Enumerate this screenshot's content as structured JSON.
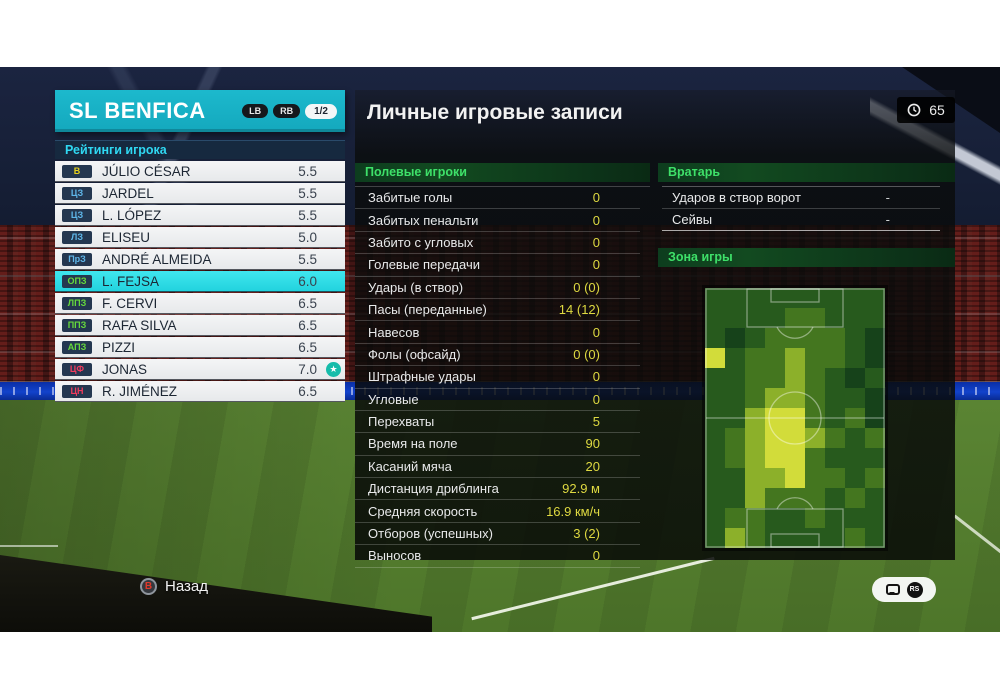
{
  "team_panel": {
    "team_name": "SL BENFICA",
    "lb_label": "LB",
    "rb_label": "RB",
    "page_indicator": "1/2",
    "section_title": "Рейтинги игрока",
    "position_colors": {
      "gk": "#e8d21c",
      "df": "#5fb7ea",
      "mf": "#66d93c",
      "fw": "#f03c5e"
    },
    "players": [
      {
        "pos": "В",
        "type": "gk",
        "name": "JÚLIO CÉSAR",
        "rating": "5.5",
        "selected": false,
        "star": false
      },
      {
        "pos": "ЦЗ",
        "type": "df",
        "name": "JARDEL",
        "rating": "5.5",
        "selected": false,
        "star": false
      },
      {
        "pos": "ЦЗ",
        "type": "df",
        "name": "L. LÓPEZ",
        "rating": "5.5",
        "selected": false,
        "star": false
      },
      {
        "pos": "ЛЗ",
        "type": "df",
        "name": "ELISEU",
        "rating": "5.0",
        "selected": false,
        "star": false
      },
      {
        "pos": "ПрЗ",
        "type": "df",
        "name": "ANDRÉ ALMEIDA",
        "rating": "5.5",
        "selected": false,
        "star": false
      },
      {
        "pos": "ОПЗ",
        "type": "mf",
        "name": "L. FEJSA",
        "rating": "6.0",
        "selected": true,
        "star": false
      },
      {
        "pos": "ЛПЗ",
        "type": "mf",
        "name": "F. CERVI",
        "rating": "6.5",
        "selected": false,
        "star": false
      },
      {
        "pos": "ППЗ",
        "type": "mf",
        "name": "RAFA SILVA",
        "rating": "6.5",
        "selected": false,
        "star": false
      },
      {
        "pos": "АПЗ",
        "type": "mf",
        "name": "PIZZI",
        "rating": "6.5",
        "selected": false,
        "star": false
      },
      {
        "pos": "ЦФ",
        "type": "fw",
        "name": "JONAS",
        "rating": "7.0",
        "selected": false,
        "star": true
      },
      {
        "pos": "ЦН",
        "type": "fw",
        "name": "R. JIMÉNEZ",
        "rating": "6.5",
        "selected": false,
        "star": false
      }
    ]
  },
  "main_panel": {
    "title": "Личные игровые записи",
    "time_value": "65",
    "field_players": {
      "header": "Полевые игроки",
      "stats": [
        {
          "label": "Забитые голы",
          "value": "0"
        },
        {
          "label": "Забитых пенальти",
          "value": "0"
        },
        {
          "label": "Забито с угловых",
          "value": "0"
        },
        {
          "label": "Голевые передачи",
          "value": "0"
        },
        {
          "label": "Удары (в створ)",
          "value": "0 (0)"
        },
        {
          "label": "Пасы (переданные)",
          "value": "14 (12)"
        },
        {
          "label": "Навесов",
          "value": "0"
        },
        {
          "label": "Фолы (офсайд)",
          "value": "0 (0)"
        },
        {
          "label": "Штрафные удары",
          "value": "0"
        },
        {
          "label": "Угловые",
          "value": "0"
        },
        {
          "label": "Перехваты",
          "value": "5"
        },
        {
          "label": "Время на поле",
          "value": "90"
        },
        {
          "label": "Касаний мяча",
          "value": "20"
        },
        {
          "label": "Дистанция дриблинга",
          "value": "92.9 м"
        },
        {
          "label": "Средняя скорость",
          "value": "16.9 км/ч"
        },
        {
          "label": "Отборов (успешных)",
          "value": "3 (2)"
        },
        {
          "label": "Выносов",
          "value": "0"
        }
      ]
    },
    "goalkeeper": {
      "header": "Вратарь",
      "stats": [
        {
          "label": "Ударов в створ ворот",
          "value": "-"
        },
        {
          "label": "Сейвы",
          "value": "-"
        }
      ]
    },
    "zone": {
      "header": "Зона игры"
    }
  },
  "footer": {
    "back_button_label": "B",
    "back_label": "Назад",
    "rs_label": "RS"
  },
  "chart_data": {
    "type": "heatmap",
    "title": "Зона игры",
    "description": "player position heat map on vertical football pitch, intensity 0 (dark green) to 4 (bright yellow)",
    "grid_size": {
      "cols": 9,
      "rows": 13
    },
    "palette": [
      "#16421a",
      "#275a1d",
      "#44761f",
      "#8cb02a",
      "#d2dc3a"
    ],
    "grid": [
      [
        1,
        1,
        1,
        1,
        1,
        1,
        1,
        1,
        1
      ],
      [
        1,
        1,
        1,
        1,
        2,
        2,
        1,
        1,
        1
      ],
      [
        1,
        0,
        1,
        2,
        2,
        2,
        2,
        1,
        0
      ],
      [
        4,
        1,
        2,
        2,
        3,
        2,
        2,
        1,
        0
      ],
      [
        1,
        1,
        2,
        2,
        3,
        2,
        1,
        0,
        1
      ],
      [
        1,
        1,
        2,
        3,
        3,
        2,
        1,
        1,
        0
      ],
      [
        1,
        1,
        3,
        4,
        4,
        2,
        1,
        2,
        0
      ],
      [
        1,
        2,
        3,
        4,
        4,
        3,
        2,
        1,
        2
      ],
      [
        1,
        2,
        3,
        4,
        4,
        2,
        1,
        1,
        1
      ],
      [
        1,
        1,
        3,
        3,
        4,
        2,
        2,
        1,
        2
      ],
      [
        1,
        1,
        3,
        2,
        2,
        2,
        1,
        2,
        1
      ],
      [
        1,
        2,
        2,
        1,
        1,
        2,
        1,
        1,
        1
      ],
      [
        1,
        3,
        2,
        1,
        1,
        1,
        1,
        2,
        1
      ]
    ]
  }
}
